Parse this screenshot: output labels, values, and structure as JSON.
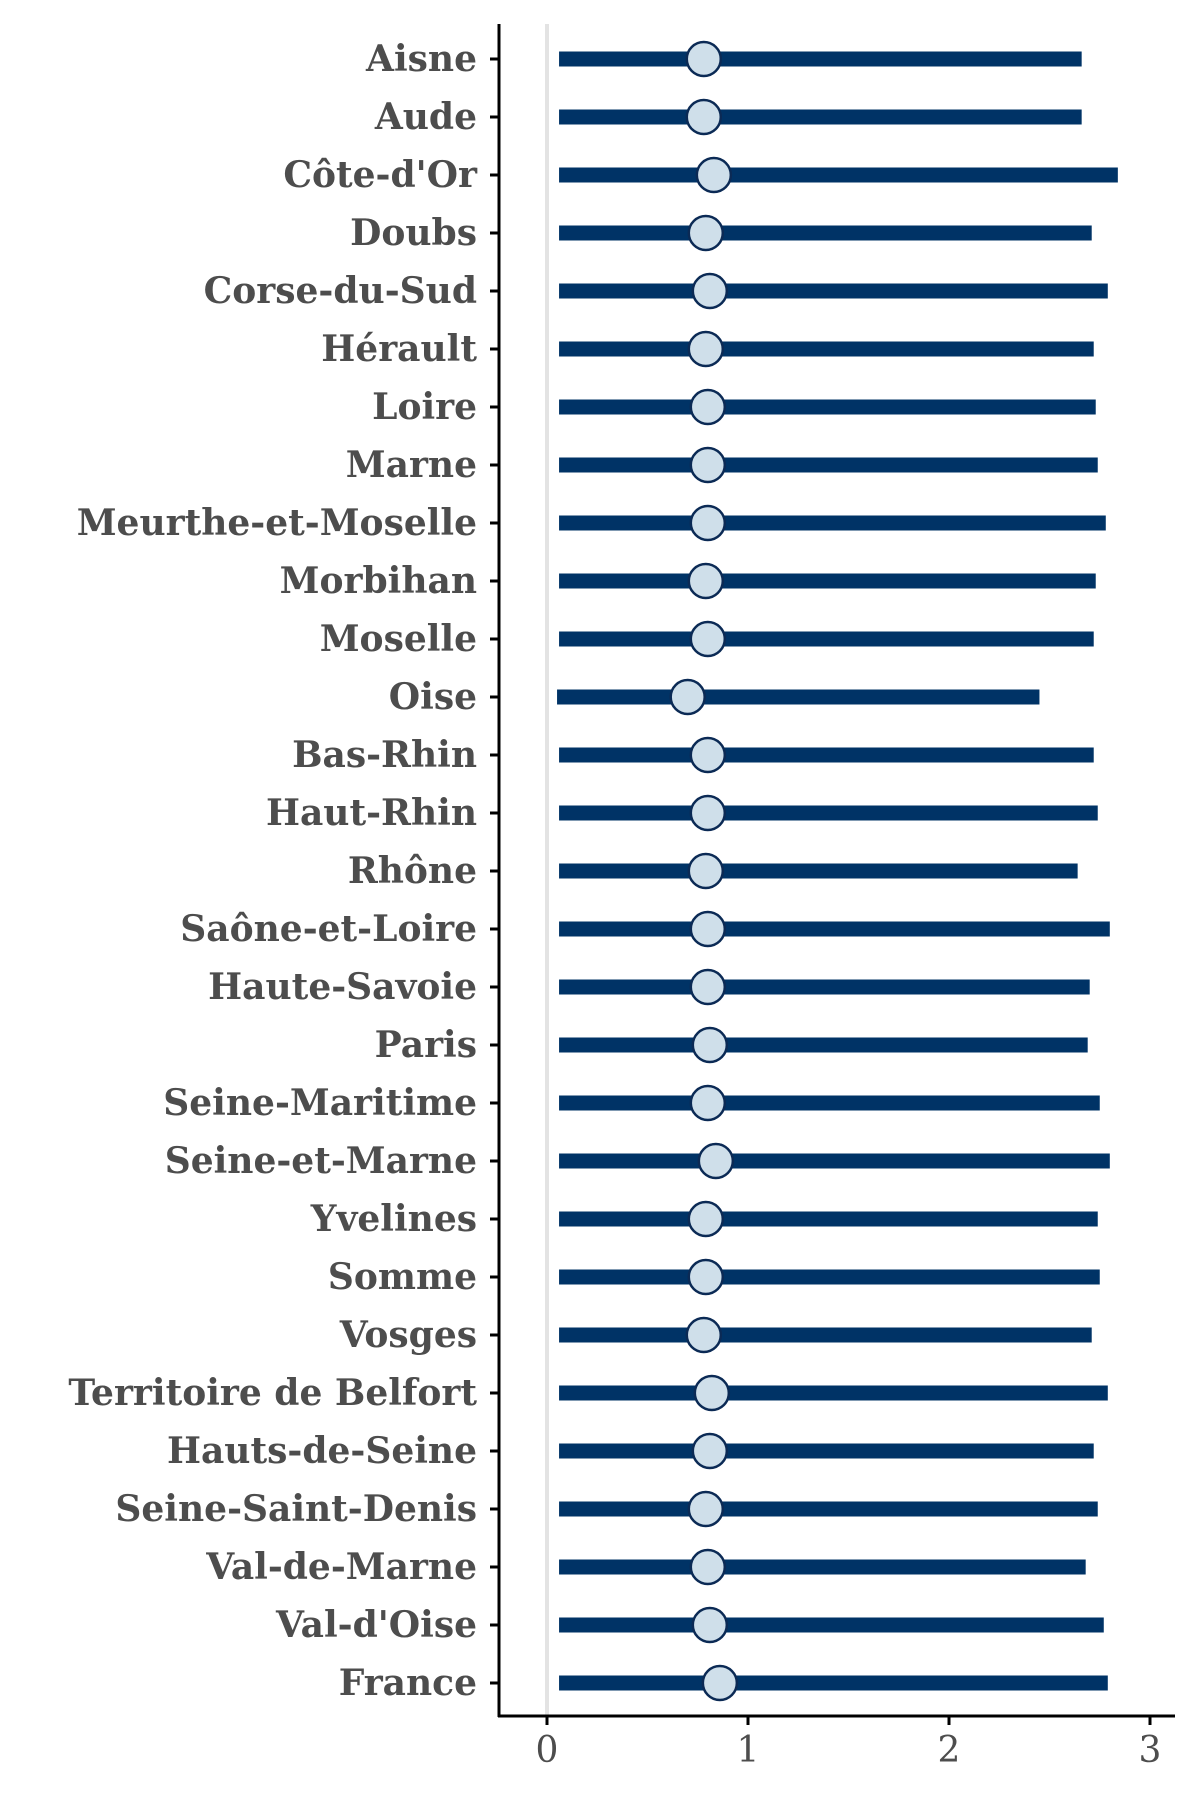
{
  "chart_data": {
    "type": "range-dot",
    "title": "",
    "xlabel": "",
    "ylabel": "",
    "xlim": [
      -0.25,
      3.15
    ],
    "xticks": [
      0,
      1,
      2,
      3
    ],
    "xtick_labels": [
      "0",
      "1",
      "2",
      "3"
    ],
    "reference_line_x": 0,
    "grid": false,
    "colors": {
      "bar": "#003366",
      "dot_fill": "#cfdfea",
      "dot_stroke": "#0b2a55",
      "reference_line": "#e3e3e3",
      "axis": "#000000",
      "text": "#4d4d4d"
    },
    "categories": [
      "Aisne",
      "Aude",
      "Côte-d'Or",
      "Doubs",
      "Corse-du-Sud",
      "Hérault",
      "Loire",
      "Marne",
      "Meurthe-et-Moselle",
      "Morbihan",
      "Moselle",
      "Oise",
      "Bas-Rhin",
      "Haut-Rhin",
      "Rhône",
      "Saône-et-Loire",
      "Haute-Savoie",
      "Paris",
      "Seine-Maritime",
      "Seine-et-Marne",
      "Yvelines",
      "Somme",
      "Vosges",
      "Territoire de Belfort",
      "Hauts-de-Seine",
      "Seine-Saint-Denis",
      "Val-de-Marne",
      "Val-d'Oise",
      "France"
    ],
    "low": [
      0.06,
      0.06,
      0.06,
      0.06,
      0.06,
      0.06,
      0.06,
      0.06,
      0.06,
      0.06,
      0.06,
      0.05,
      0.06,
      0.06,
      0.06,
      0.06,
      0.06,
      0.06,
      0.06,
      0.06,
      0.06,
      0.06,
      0.06,
      0.06,
      0.06,
      0.06,
      0.06,
      0.06,
      0.06
    ],
    "high": [
      2.66,
      2.66,
      2.84,
      2.71,
      2.79,
      2.72,
      2.73,
      2.74,
      2.78,
      2.73,
      2.72,
      2.45,
      2.72,
      2.74,
      2.64,
      2.8,
      2.7,
      2.69,
      2.75,
      2.8,
      2.74,
      2.75,
      2.71,
      2.79,
      2.72,
      2.74,
      2.68,
      2.77,
      2.79
    ],
    "point": [
      0.78,
      0.78,
      0.83,
      0.79,
      0.81,
      0.79,
      0.8,
      0.8,
      0.8,
      0.79,
      0.8,
      0.7,
      0.8,
      0.8,
      0.79,
      0.8,
      0.8,
      0.81,
      0.8,
      0.84,
      0.79,
      0.79,
      0.78,
      0.82,
      0.81,
      0.79,
      0.8,
      0.81,
      0.86
    ]
  }
}
